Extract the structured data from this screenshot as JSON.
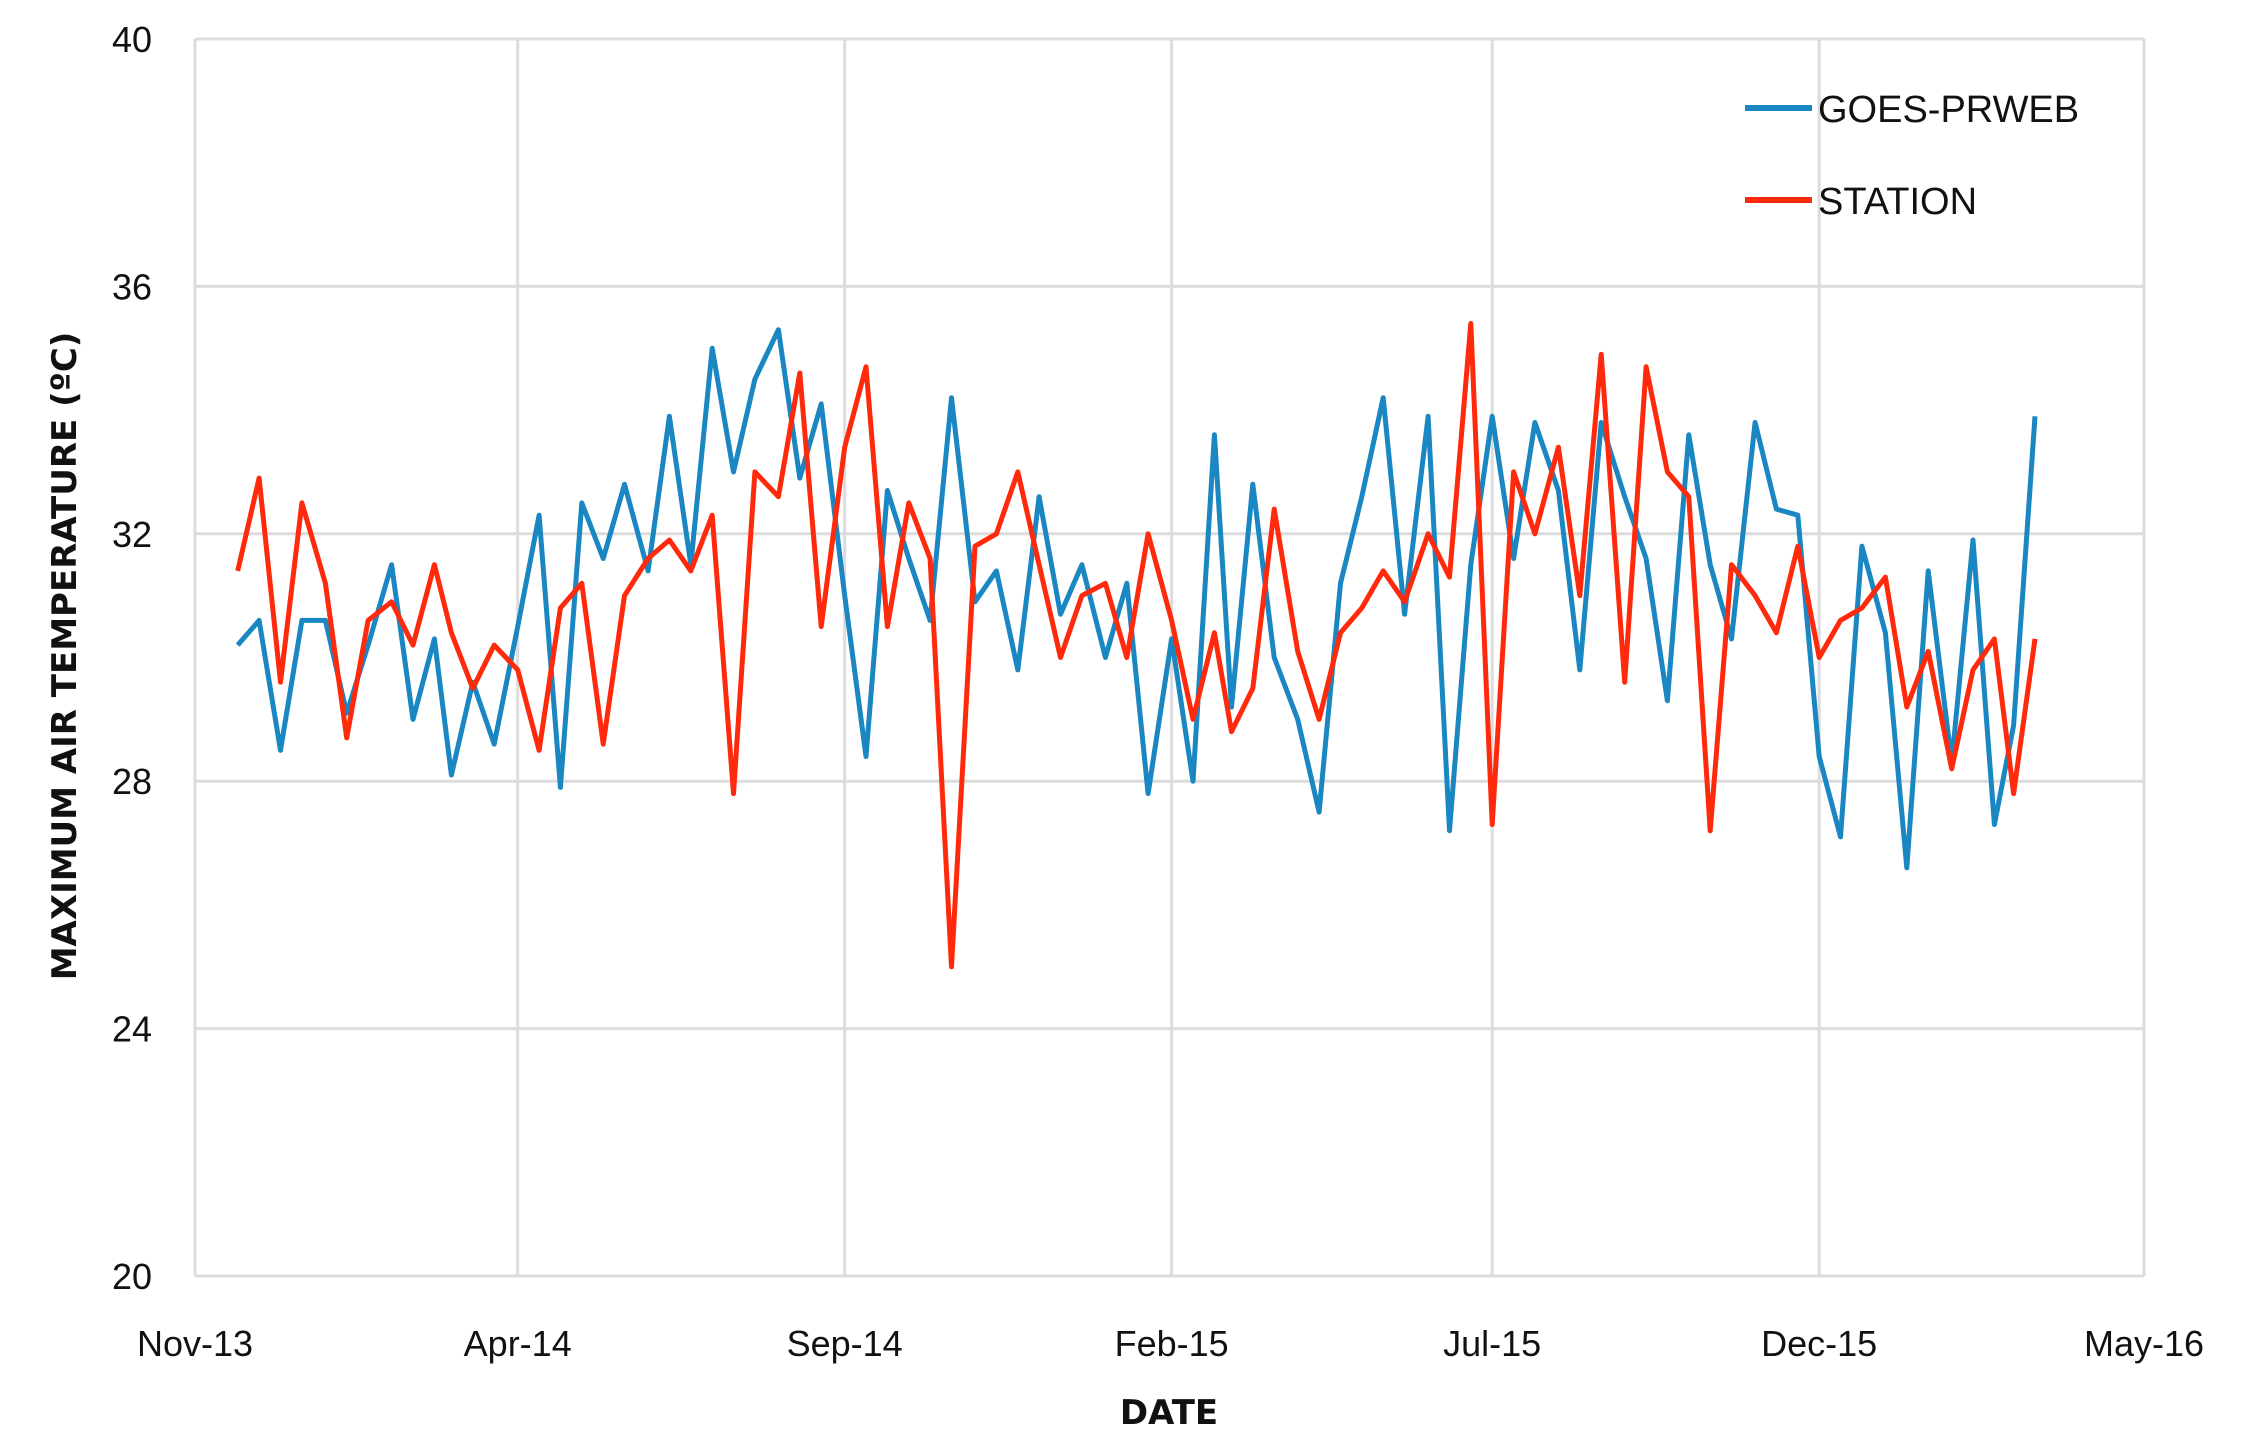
{
  "chart_data": {
    "type": "line",
    "title": "",
    "xlabel": "DATE",
    "ylabel": "MAXIMUM AIR TEMPERATURE (ºC)",
    "xlim": [
      "2013-11-01",
      "2016-05-01"
    ],
    "ylim": [
      20,
      40
    ],
    "x_tick_labels": [
      "Nov-13",
      "Apr-14",
      "Sep-14",
      "Feb-15",
      "Jul-15",
      "Dec-15",
      "May-16"
    ],
    "x_tick_dates": [
      "2013-11-01",
      "2014-04-01",
      "2014-09-01",
      "2015-02-01",
      "2015-07-01",
      "2015-12-01",
      "2016-05-01"
    ],
    "y_ticks": [
      20,
      24,
      28,
      32,
      36,
      40
    ],
    "grid": true,
    "legend_position": "top-right",
    "x": [
      "2013-11-21",
      "2013-12-01",
      "2013-12-11",
      "2013-12-21",
      "2014-01-01",
      "2014-01-11",
      "2014-01-21",
      "2014-02-01",
      "2014-02-11",
      "2014-02-21",
      "2014-03-01",
      "2014-03-11",
      "2014-03-21",
      "2014-04-01",
      "2014-04-11",
      "2014-04-21",
      "2014-05-01",
      "2014-05-11",
      "2014-05-21",
      "2014-06-01",
      "2014-06-11",
      "2014-06-21",
      "2014-07-01",
      "2014-07-11",
      "2014-07-21",
      "2014-08-01",
      "2014-08-11",
      "2014-08-21",
      "2014-09-01",
      "2014-09-11",
      "2014-09-21",
      "2014-10-01",
      "2014-10-11",
      "2014-10-21",
      "2014-11-01",
      "2014-11-11",
      "2014-11-21",
      "2014-12-01",
      "2014-12-11",
      "2014-12-21",
      "2015-01-01",
      "2015-01-11",
      "2015-01-21",
      "2015-02-01",
      "2015-02-11",
      "2015-02-21",
      "2015-03-01",
      "2015-03-11",
      "2015-03-21",
      "2015-04-01",
      "2015-04-11",
      "2015-04-21",
      "2015-05-01",
      "2015-05-11",
      "2015-05-21",
      "2015-06-01",
      "2015-06-11",
      "2015-06-21",
      "2015-07-01",
      "2015-07-11",
      "2015-07-21",
      "2015-08-01",
      "2015-08-11",
      "2015-08-21",
      "2015-09-01",
      "2015-09-11",
      "2015-09-21",
      "2015-10-01",
      "2015-10-11",
      "2015-10-21",
      "2015-11-01",
      "2015-11-11",
      "2015-11-21",
      "2015-12-01",
      "2015-12-11",
      "2015-12-21",
      "2016-01-01",
      "2016-01-11",
      "2016-01-21",
      "2016-02-01",
      "2016-02-11",
      "2016-02-21",
      "2016-03-01",
      "2016-03-11"
    ],
    "series": [
      {
        "name": "GOES-PRWEB",
        "color": "#1a86c2",
        "values": [
          30.2,
          30.6,
          28.5,
          30.6,
          30.6,
          29.1,
          30.2,
          31.5,
          29.0,
          30.3,
          28.1,
          29.6,
          28.6,
          30.5,
          32.3,
          27.9,
          32.5,
          31.6,
          32.8,
          31.4,
          33.9,
          31.5,
          35.0,
          33.0,
          34.5,
          35.3,
          32.9,
          34.1,
          31.0,
          28.4,
          32.7,
          31.6,
          30.6,
          34.2,
          30.9,
          31.4,
          29.8,
          32.6,
          30.7,
          31.5,
          30.0,
          31.2,
          27.8,
          30.3,
          28.0,
          33.6,
          29.2,
          32.8,
          30.0,
          29.0,
          27.5,
          31.2,
          32.6,
          34.2,
          30.7,
          33.9,
          27.2,
          31.5,
          33.9,
          31.6,
          33.8,
          32.7,
          29.8,
          33.8,
          32.6,
          31.6,
          29.3,
          33.6,
          31.5,
          30.3,
          33.8,
          32.4,
          32.3,
          28.4,
          27.1,
          31.8,
          30.4,
          26.6,
          31.4,
          28.3,
          31.9,
          27.3,
          28.9,
          33.9
        ]
      },
      {
        "name": "STATION",
        "color": "#ff2a0c",
        "values": [
          31.4,
          32.9,
          29.6,
          32.5,
          31.2,
          28.7,
          30.6,
          30.9,
          30.2,
          31.5,
          30.4,
          29.5,
          30.2,
          29.8,
          28.5,
          30.8,
          31.2,
          28.6,
          31.0,
          31.6,
          31.9,
          31.4,
          32.3,
          27.8,
          33.0,
          32.6,
          34.6,
          30.5,
          33.4,
          34.7,
          30.5,
          32.5,
          31.6,
          25.0,
          31.8,
          32.0,
          33.0,
          31.5,
          30.0,
          31.0,
          31.2,
          30.0,
          32.0,
          30.6,
          29.0,
          30.4,
          28.8,
          29.5,
          32.4,
          30.1,
          29.0,
          30.4,
          30.8,
          31.4,
          30.9,
          32.0,
          31.3,
          35.4,
          27.3,
          33.0,
          32.0,
          33.4,
          31.0,
          34.9,
          29.6,
          34.7,
          33.0,
          32.6,
          27.2,
          31.5,
          31.0,
          30.4,
          31.8,
          30.0,
          30.6,
          30.8,
          31.3,
          29.2,
          30.1,
          28.2,
          29.8,
          30.3,
          27.8,
          30.3
        ]
      }
    ]
  }
}
